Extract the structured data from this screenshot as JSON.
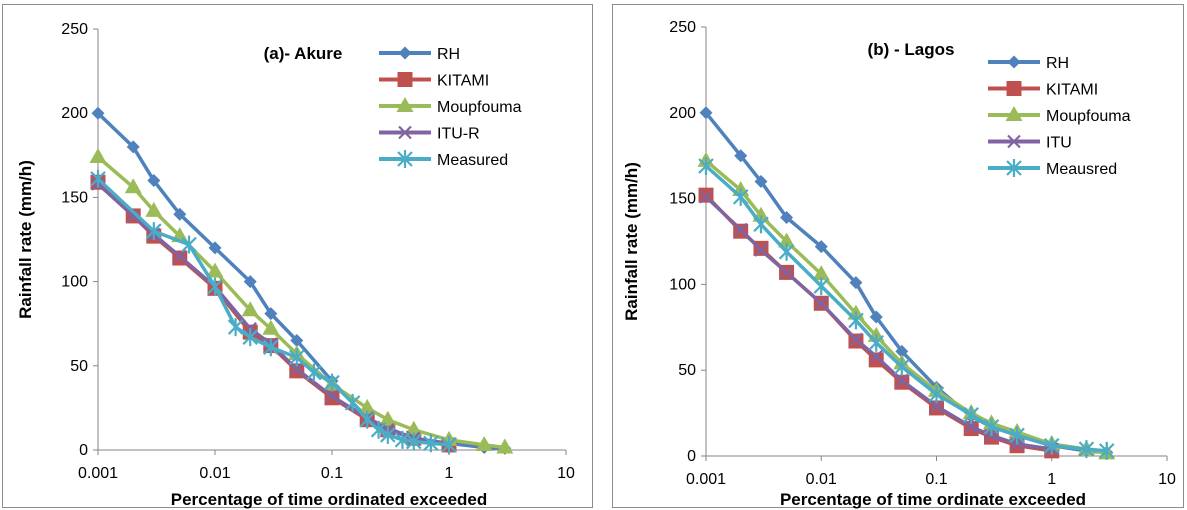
{
  "chart_data": [
    {
      "type": "line",
      "title": "(a)- Akure",
      "xlabel": "Percentage of time ordinated exceeded",
      "ylabel": "Rainfall rate (mm/h)",
      "xscale": "log",
      "xlim": [
        0.001,
        10
      ],
      "ylim": [
        0,
        250
      ],
      "xticks": [
        "0.001",
        "0.01",
        "0.1",
        "1",
        "10"
      ],
      "yticks": [
        "0",
        "50",
        "100",
        "150",
        "200",
        "250"
      ],
      "grid": false,
      "legend": "top-right",
      "series": [
        {
          "name": "RH",
          "color": "#4f81bd",
          "marker": "diamond",
          "x": [
            0.001,
            0.002,
            0.003,
            0.005,
            0.01,
            0.02,
            0.03,
            0.05,
            0.1,
            0.2,
            0.3,
            0.5,
            1,
            2,
            3
          ],
          "y": [
            200,
            180,
            160,
            140,
            120,
            100,
            81,
            65,
            41,
            19,
            13,
            7,
            4,
            1.5,
            1
          ]
        },
        {
          "name": "KITAMI",
          "color": "#c0504d",
          "marker": "square",
          "x": [
            0.001,
            0.002,
            0.003,
            0.005,
            0.01,
            0.02,
            0.03,
            0.05,
            0.1,
            0.2,
            0.3,
            0.5,
            1
          ],
          "y": [
            159,
            139,
            127,
            114,
            96,
            70,
            62,
            47,
            31,
            18,
            12,
            7,
            3
          ]
        },
        {
          "name": "Moupfouma",
          "color": "#9bbb59",
          "marker": "triangle",
          "x": [
            0.001,
            0.002,
            0.003,
            0.005,
            0.01,
            0.02,
            0.03,
            0.05,
            0.1,
            0.2,
            0.3,
            0.5,
            1,
            2,
            3
          ],
          "y": [
            174,
            156,
            142,
            127,
            106,
            83,
            72,
            57,
            39,
            25,
            18,
            12,
            6,
            3,
            1.5
          ]
        },
        {
          "name": "ITU-R",
          "color": "#8064a2",
          "marker": "x",
          "x": [
            0.001,
            0.002,
            0.003,
            0.005,
            0.01,
            0.02,
            0.03,
            0.05,
            0.1,
            0.2,
            0.3,
            0.5,
            1
          ],
          "y": [
            158,
            139,
            128,
            115,
            97,
            72,
            63,
            48,
            32,
            19,
            12,
            7,
            3
          ]
        },
        {
          "name": "Measured",
          "color": "#4bacc6",
          "marker": "asterisk",
          "x": [
            0.001,
            0.003,
            0.006,
            0.01,
            0.015,
            0.02,
            0.03,
            0.05,
            0.07,
            0.1,
            0.15,
            0.2,
            0.25,
            0.3,
            0.4,
            0.5,
            0.7,
            1
          ],
          "y": [
            161,
            130,
            122,
            97,
            73,
            67,
            61,
            55,
            46,
            40,
            28,
            18,
            12,
            9,
            6,
            5,
            4,
            3
          ]
        }
      ]
    },
    {
      "type": "line",
      "title": "(b) - Lagos",
      "xlabel": "Percentage of time ordinate exceeded",
      "ylabel": "Rainfall rate (mm/h)",
      "xscale": "log",
      "xlim": [
        0.001,
        10
      ],
      "ylim": [
        0,
        250
      ],
      "xticks": [
        "0.001",
        "0.01",
        "0.1",
        "1",
        "10"
      ],
      "yticks": [
        "0",
        "50",
        "100",
        "150",
        "200",
        "250"
      ],
      "grid": false,
      "legend": "top-right",
      "series": [
        {
          "name": "RH",
          "color": "#4f81bd",
          "marker": "diamond",
          "x": [
            0.001,
            0.002,
            0.003,
            0.005,
            0.01,
            0.02,
            0.03,
            0.05,
            0.1,
            0.2,
            0.3,
            0.5,
            1,
            2,
            3
          ],
          "y": [
            200,
            175,
            160,
            139,
            122,
            101,
            81,
            61,
            40,
            23,
            17,
            12,
            6,
            3,
            2
          ]
        },
        {
          "name": "KITAMI",
          "color": "#c0504d",
          "marker": "square",
          "x": [
            0.001,
            0.002,
            0.003,
            0.005,
            0.01,
            0.02,
            0.03,
            0.05,
            0.1,
            0.2,
            0.3,
            0.5,
            1
          ],
          "y": [
            152,
            131,
            121,
            107,
            89,
            67,
            56,
            43,
            28,
            16,
            11,
            6,
            3
          ]
        },
        {
          "name": "Moupfouma",
          "color": "#9bbb59",
          "marker": "triangle",
          "x": [
            0.001,
            0.002,
            0.003,
            0.005,
            0.01,
            0.02,
            0.03,
            0.05,
            0.1,
            0.2,
            0.3,
            0.5,
            1,
            2,
            3
          ],
          "y": [
            172,
            155,
            140,
            125,
            106,
            83,
            70,
            54,
            38,
            25,
            19,
            14,
            7,
            4,
            1.5
          ]
        },
        {
          "name": "ITU",
          "color": "#8064a2",
          "marker": "x",
          "x": [
            0.001,
            0.002,
            0.003,
            0.005,
            0.01,
            0.02,
            0.03,
            0.05,
            0.1,
            0.2,
            0.3,
            0.5,
            1
          ],
          "y": [
            151,
            132,
            120,
            107,
            89,
            68,
            58,
            44,
            29,
            17,
            12,
            7,
            4
          ]
        },
        {
          "name": "Meausred",
          "color": "#4bacc6",
          "marker": "asterisk",
          "x": [
            0.001,
            0.002,
            0.003,
            0.005,
            0.01,
            0.02,
            0.03,
            0.05,
            0.1,
            0.2,
            0.3,
            0.5,
            1,
            2,
            3
          ],
          "y": [
            169,
            151,
            135,
            119,
            99,
            79,
            66,
            52,
            36,
            24,
            17,
            12,
            6,
            4,
            3
          ]
        }
      ]
    }
  ]
}
